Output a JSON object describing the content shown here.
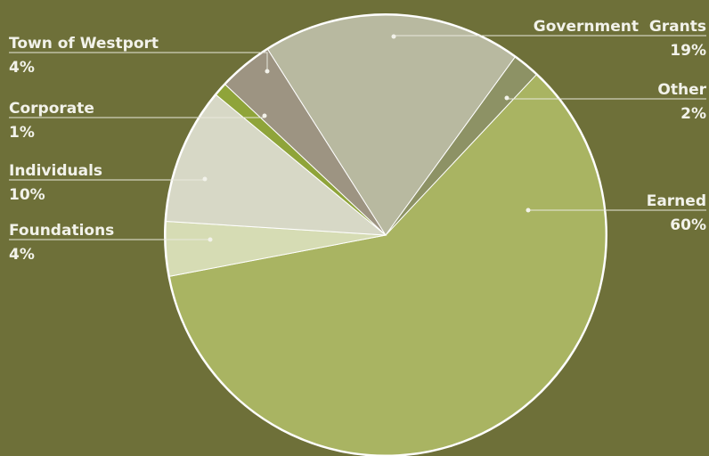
{
  "chart_data": {
    "type": "pie",
    "categories": [
      "Earned",
      "Foundations",
      "Individuals",
      "Corporate",
      "Town of Westport",
      "Government  Grants",
      "Other"
    ],
    "values": [
      60,
      4,
      10,
      1,
      4,
      19,
      2
    ],
    "value_labels": [
      "60%",
      "4%",
      "10%",
      "1%",
      "4%",
      "19%",
      "2%"
    ],
    "colors": [
      "#a9b462",
      "#d6dcb4",
      "#d7d8c6",
      "#8fa43a",
      "#9d9482",
      "#b8b9a0",
      "#8d9265"
    ]
  }
}
